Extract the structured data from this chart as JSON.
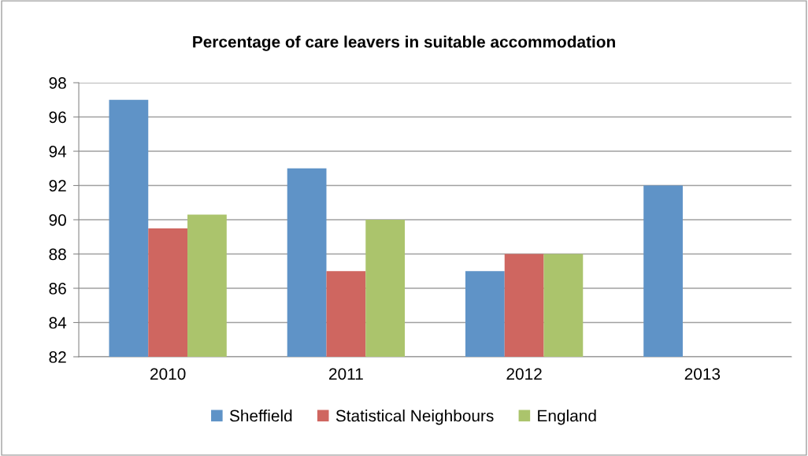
{
  "chart_data": {
    "type": "bar",
    "title": "Percentage of care leavers in suitable accommodation",
    "categories": [
      "2010",
      "2011",
      "2012",
      "2013"
    ],
    "series": [
      {
        "name": "Sheffield",
        "color": "#5f93c7",
        "values": [
          97,
          93,
          87,
          92
        ]
      },
      {
        "name": "Statistical Neighbours",
        "color": "#cf6660",
        "values": [
          89.5,
          87,
          88,
          null
        ]
      },
      {
        "name": "England",
        "color": "#abc46c",
        "values": [
          90.3,
          90,
          88,
          null
        ]
      }
    ],
    "ylim": [
      82,
      98
    ],
    "yticks": [
      82,
      84,
      86,
      88,
      90,
      92,
      94,
      96,
      98
    ],
    "grid": "y",
    "legend": "bottom"
  }
}
